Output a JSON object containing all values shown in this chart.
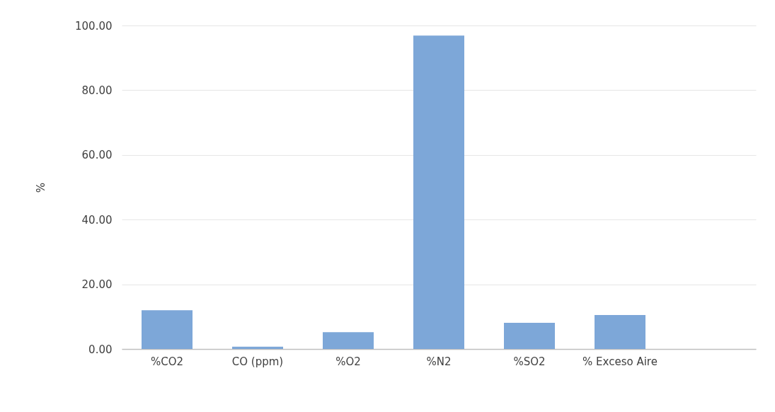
{
  "chart_data": {
    "type": "bar",
    "ylabel": "%",
    "categories": [
      "%CO2",
      "CO (ppm)",
      "%O2",
      "%N2",
      "%SO2",
      "% Exceso Aire",
      null
    ],
    "values": [
      12.0,
      0.7,
      5.2,
      96.9,
      8.1,
      10.5,
      null
    ],
    "color": "#7da7d8",
    "ylim": [
      0,
      100
    ],
    "yticks": [
      {
        "value": 0,
        "label": "0.00"
      },
      {
        "value": 20,
        "label": "20.00"
      },
      {
        "value": 40,
        "label": "40.00"
      },
      {
        "value": 60,
        "label": "60.00"
      },
      {
        "value": 80,
        "label": "80.00"
      },
      {
        "value": 100,
        "label": "100.00"
      }
    ],
    "grid": "y"
  }
}
